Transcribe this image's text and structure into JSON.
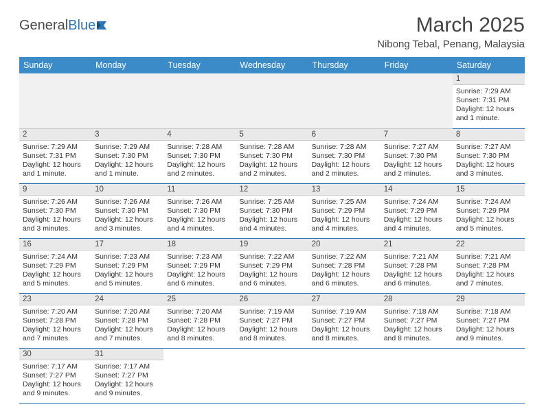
{
  "brand": {
    "part1": "General",
    "part2": "Blue"
  },
  "title": "March 2025",
  "location": "Nibong Tebal, Penang, Malaysia",
  "colors": {
    "header_bg": "#3b8bc9",
    "header_fg": "#ffffff",
    "row_divider": "#2e75b6",
    "daynum_bg": "#e9e9e9",
    "text": "#333333"
  },
  "typography": {
    "title_fontsize_pt": 22,
    "location_fontsize_pt": 11,
    "header_fontsize_pt": 9,
    "cell_fontsize_pt": 8
  },
  "layout": {
    "columns": 7,
    "rows": 6,
    "leading_blanks": 6,
    "trailing_blanks": 5
  },
  "day_headers": [
    "Sunday",
    "Monday",
    "Tuesday",
    "Wednesday",
    "Thursday",
    "Friday",
    "Saturday"
  ],
  "days": [
    {
      "n": "1",
      "sunrise": "Sunrise: 7:29 AM",
      "sunset": "Sunset: 7:31 PM",
      "daylight": "Daylight: 12 hours and 1 minute."
    },
    {
      "n": "2",
      "sunrise": "Sunrise: 7:29 AM",
      "sunset": "Sunset: 7:31 PM",
      "daylight": "Daylight: 12 hours and 1 minute."
    },
    {
      "n": "3",
      "sunrise": "Sunrise: 7:29 AM",
      "sunset": "Sunset: 7:30 PM",
      "daylight": "Daylight: 12 hours and 1 minute."
    },
    {
      "n": "4",
      "sunrise": "Sunrise: 7:28 AM",
      "sunset": "Sunset: 7:30 PM",
      "daylight": "Daylight: 12 hours and 2 minutes."
    },
    {
      "n": "5",
      "sunrise": "Sunrise: 7:28 AM",
      "sunset": "Sunset: 7:30 PM",
      "daylight": "Daylight: 12 hours and 2 minutes."
    },
    {
      "n": "6",
      "sunrise": "Sunrise: 7:28 AM",
      "sunset": "Sunset: 7:30 PM",
      "daylight": "Daylight: 12 hours and 2 minutes."
    },
    {
      "n": "7",
      "sunrise": "Sunrise: 7:27 AM",
      "sunset": "Sunset: 7:30 PM",
      "daylight": "Daylight: 12 hours and 2 minutes."
    },
    {
      "n": "8",
      "sunrise": "Sunrise: 7:27 AM",
      "sunset": "Sunset: 7:30 PM",
      "daylight": "Daylight: 12 hours and 3 minutes."
    },
    {
      "n": "9",
      "sunrise": "Sunrise: 7:26 AM",
      "sunset": "Sunset: 7:30 PM",
      "daylight": "Daylight: 12 hours and 3 minutes."
    },
    {
      "n": "10",
      "sunrise": "Sunrise: 7:26 AM",
      "sunset": "Sunset: 7:30 PM",
      "daylight": "Daylight: 12 hours and 3 minutes."
    },
    {
      "n": "11",
      "sunrise": "Sunrise: 7:26 AM",
      "sunset": "Sunset: 7:30 PM",
      "daylight": "Daylight: 12 hours and 4 minutes."
    },
    {
      "n": "12",
      "sunrise": "Sunrise: 7:25 AM",
      "sunset": "Sunset: 7:30 PM",
      "daylight": "Daylight: 12 hours and 4 minutes."
    },
    {
      "n": "13",
      "sunrise": "Sunrise: 7:25 AM",
      "sunset": "Sunset: 7:29 PM",
      "daylight": "Daylight: 12 hours and 4 minutes."
    },
    {
      "n": "14",
      "sunrise": "Sunrise: 7:24 AM",
      "sunset": "Sunset: 7:29 PM",
      "daylight": "Daylight: 12 hours and 4 minutes."
    },
    {
      "n": "15",
      "sunrise": "Sunrise: 7:24 AM",
      "sunset": "Sunset: 7:29 PM",
      "daylight": "Daylight: 12 hours and 5 minutes."
    },
    {
      "n": "16",
      "sunrise": "Sunrise: 7:24 AM",
      "sunset": "Sunset: 7:29 PM",
      "daylight": "Daylight: 12 hours and 5 minutes."
    },
    {
      "n": "17",
      "sunrise": "Sunrise: 7:23 AM",
      "sunset": "Sunset: 7:29 PM",
      "daylight": "Daylight: 12 hours and 5 minutes."
    },
    {
      "n": "18",
      "sunrise": "Sunrise: 7:23 AM",
      "sunset": "Sunset: 7:29 PM",
      "daylight": "Daylight: 12 hours and 6 minutes."
    },
    {
      "n": "19",
      "sunrise": "Sunrise: 7:22 AM",
      "sunset": "Sunset: 7:29 PM",
      "daylight": "Daylight: 12 hours and 6 minutes."
    },
    {
      "n": "20",
      "sunrise": "Sunrise: 7:22 AM",
      "sunset": "Sunset: 7:28 PM",
      "daylight": "Daylight: 12 hours and 6 minutes."
    },
    {
      "n": "21",
      "sunrise": "Sunrise: 7:21 AM",
      "sunset": "Sunset: 7:28 PM",
      "daylight": "Daylight: 12 hours and 6 minutes."
    },
    {
      "n": "22",
      "sunrise": "Sunrise: 7:21 AM",
      "sunset": "Sunset: 7:28 PM",
      "daylight": "Daylight: 12 hours and 7 minutes."
    },
    {
      "n": "23",
      "sunrise": "Sunrise: 7:20 AM",
      "sunset": "Sunset: 7:28 PM",
      "daylight": "Daylight: 12 hours and 7 minutes."
    },
    {
      "n": "24",
      "sunrise": "Sunrise: 7:20 AM",
      "sunset": "Sunset: 7:28 PM",
      "daylight": "Daylight: 12 hours and 7 minutes."
    },
    {
      "n": "25",
      "sunrise": "Sunrise: 7:20 AM",
      "sunset": "Sunset: 7:28 PM",
      "daylight": "Daylight: 12 hours and 8 minutes."
    },
    {
      "n": "26",
      "sunrise": "Sunrise: 7:19 AM",
      "sunset": "Sunset: 7:27 PM",
      "daylight": "Daylight: 12 hours and 8 minutes."
    },
    {
      "n": "27",
      "sunrise": "Sunrise: 7:19 AM",
      "sunset": "Sunset: 7:27 PM",
      "daylight": "Daylight: 12 hours and 8 minutes."
    },
    {
      "n": "28",
      "sunrise": "Sunrise: 7:18 AM",
      "sunset": "Sunset: 7:27 PM",
      "daylight": "Daylight: 12 hours and 8 minutes."
    },
    {
      "n": "29",
      "sunrise": "Sunrise: 7:18 AM",
      "sunset": "Sunset: 7:27 PM",
      "daylight": "Daylight: 12 hours and 9 minutes."
    },
    {
      "n": "30",
      "sunrise": "Sunrise: 7:17 AM",
      "sunset": "Sunset: 7:27 PM",
      "daylight": "Daylight: 12 hours and 9 minutes."
    },
    {
      "n": "31",
      "sunrise": "Sunrise: 7:17 AM",
      "sunset": "Sunset: 7:27 PM",
      "daylight": "Daylight: 12 hours and 9 minutes."
    }
  ]
}
